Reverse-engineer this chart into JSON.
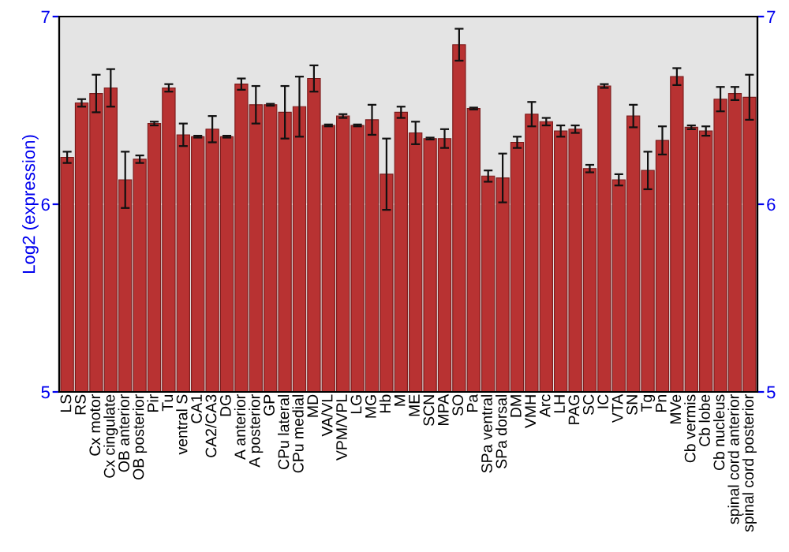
{
  "chart_data": {
    "type": "bar",
    "ylabel": "Log2 (expression)",
    "categories": [
      "LS",
      "RS",
      "Cx motor",
      "Cx cingulate",
      "OB anterior",
      "OB posterior",
      "Pir",
      "Tu",
      "ventral S",
      "CA1",
      "CA2/CA3",
      "DG",
      "A anterior",
      "A posterior",
      "GP",
      "CPu lateral",
      "CPu medial",
      "MD",
      "VA/VL",
      "VPM/VPL",
      "LG",
      "MG",
      "Hb",
      "M",
      "ME",
      "SCN",
      "MPA",
      "SO",
      "Pa",
      "SPa ventral",
      "SPa dorsal",
      "DM",
      "VMH",
      "Arc",
      "LH",
      "PAG",
      "SC",
      "IC",
      "VTA",
      "SN",
      "Tg",
      "Pn",
      "MVe",
      "Cb vermis",
      "Cb lobe",
      "Cb nucleus",
      "spinal cord anterior",
      "spinal cord posterior"
    ],
    "values": [
      6.25,
      6.54,
      6.59,
      6.62,
      6.13,
      6.24,
      6.43,
      6.62,
      6.37,
      6.36,
      6.4,
      6.36,
      6.64,
      6.53,
      6.53,
      6.49,
      6.52,
      6.67,
      6.42,
      6.47,
      6.42,
      6.45,
      6.16,
      6.49,
      6.38,
      6.35,
      6.35,
      6.85,
      6.51,
      6.15,
      6.14,
      6.33,
      6.48,
      6.44,
      6.39,
      6.4,
      6.19,
      6.63,
      6.13,
      6.47,
      6.18,
      6.34,
      6.68,
      6.41,
      6.39,
      6.56,
      6.59,
      6.57
    ],
    "errors": [
      0.03,
      0.02,
      0.1,
      0.1,
      0.15,
      0.02,
      0.01,
      0.02,
      0.06,
      0.005,
      0.07,
      0.005,
      0.03,
      0.1,
      0.005,
      0.14,
      0.16,
      0.07,
      0.005,
      0.01,
      0.005,
      0.08,
      0.19,
      0.03,
      0.06,
      0.005,
      0.05,
      0.085,
      0.005,
      0.03,
      0.13,
      0.03,
      0.065,
      0.02,
      0.03,
      0.02,
      0.02,
      0.01,
      0.03,
      0.06,
      0.1,
      0.075,
      0.045,
      0.01,
      0.025,
      0.065,
      0.035,
      0.12
    ],
    "color": "#b83232",
    "ylim": [
      5,
      7
    ],
    "yticks": [
      5,
      6,
      7
    ],
    "y2lim": [
      5,
      7
    ],
    "y2ticks": [
      5,
      6,
      7
    ],
    "grid": "y"
  }
}
